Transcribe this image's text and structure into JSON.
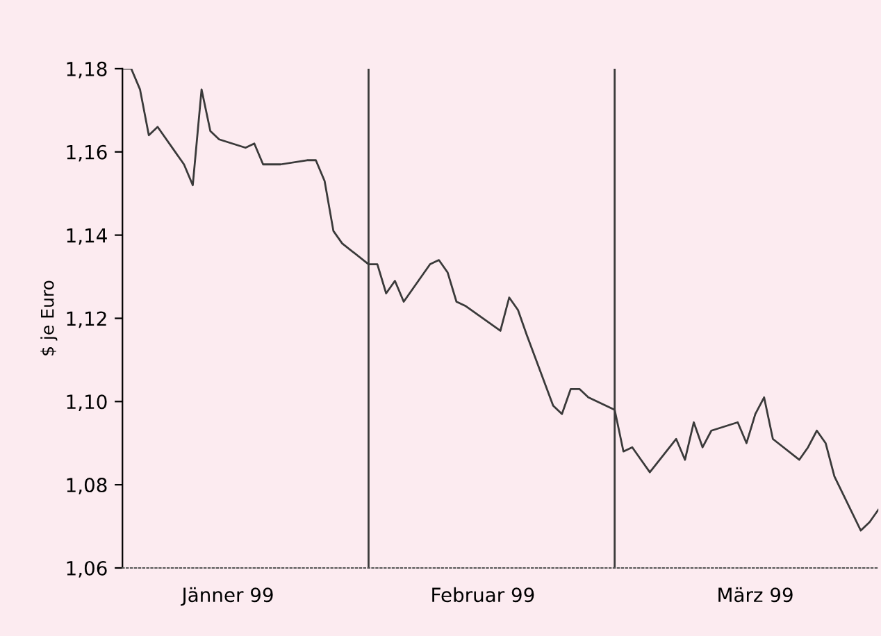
{
  "chart_data": {
    "type": "line",
    "ylabel": "$ je Euro",
    "x": [
      "1999-01-04",
      "1999-01-05",
      "1999-01-06",
      "1999-01-07",
      "1999-01-08",
      "1999-01-11",
      "1999-01-12",
      "1999-01-13",
      "1999-01-14",
      "1999-01-15",
      "1999-01-18",
      "1999-01-19",
      "1999-01-20",
      "1999-01-21",
      "1999-01-22",
      "1999-01-25",
      "1999-01-26",
      "1999-01-27",
      "1999-01-28",
      "1999-01-29",
      "1999-02-01",
      "1999-02-02",
      "1999-02-03",
      "1999-02-04",
      "1999-02-05",
      "1999-02-08",
      "1999-02-09",
      "1999-02-10",
      "1999-02-11",
      "1999-02-12",
      "1999-02-16",
      "1999-02-17",
      "1999-02-18",
      "1999-02-19",
      "1999-02-22",
      "1999-02-23",
      "1999-02-24",
      "1999-02-25",
      "1999-02-26",
      "1999-03-01",
      "1999-03-02",
      "1999-03-03",
      "1999-03-04",
      "1999-03-05",
      "1999-03-08",
      "1999-03-09",
      "1999-03-10",
      "1999-03-11",
      "1999-03-12",
      "1999-03-15",
      "1999-03-16",
      "1999-03-17",
      "1999-03-18",
      "1999-03-19",
      "1999-03-22",
      "1999-03-23",
      "1999-03-24",
      "1999-03-25",
      "1999-03-26",
      "1999-03-29",
      "1999-03-30",
      "1999-03-31"
    ],
    "series": [
      {
        "color": "#3a3a3a",
        "values": [
          1.18,
          1.18,
          1.175,
          1.164,
          1.166,
          1.157,
          1.152,
          1.175,
          1.165,
          1.163,
          1.161,
          1.162,
          1.157,
          1.157,
          1.157,
          1.158,
          1.158,
          1.153,
          1.141,
          1.138,
          1.133,
          1.133,
          1.126,
          1.129,
          1.124,
          1.133,
          1.134,
          1.131,
          1.124,
          1.123,
          1.117,
          1.125,
          1.122,
          1.116,
          1.099,
          1.097,
          1.103,
          1.103,
          1.101,
          1.098,
          1.088,
          1.089,
          1.086,
          1.083,
          1.091,
          1.086,
          1.095,
          1.089,
          1.093,
          1.095,
          1.09,
          1.097,
          1.101,
          1.091,
          1.086,
          1.089,
          1.093,
          1.09,
          1.082,
          1.069,
          1.071,
          1.074
        ]
      }
    ],
    "xlim": [
      "1999-01-04",
      "1999-03-31"
    ],
    "xticks": [
      {
        "value": "1999-01-16",
        "label": "Jänner 99"
      },
      {
        "value": "1999-02-14",
        "label": "Februar 99"
      },
      {
        "value": "1999-03-17",
        "label": "März 99"
      }
    ],
    "ylim": [
      1.06,
      1.18
    ],
    "yticks": [
      {
        "value": 1.06,
        "label": "1,06"
      },
      {
        "value": 1.08,
        "label": "1,08"
      },
      {
        "value": 1.1,
        "label": "1,10"
      },
      {
        "value": 1.12,
        "label": "1,12"
      },
      {
        "value": 1.14,
        "label": "1,14"
      },
      {
        "value": 1.16,
        "label": "1,16"
      },
      {
        "value": 1.18,
        "label": "1,18"
      }
    ],
    "ref_lines": [
      {
        "axis": "x",
        "value": "1999-02-01",
        "color": "#3a3a3a"
      },
      {
        "axis": "x",
        "value": "1999-03-01",
        "color": "#3a3a3a"
      }
    ],
    "grid": false,
    "legend": false,
    "marker": "none",
    "line_style": "solid"
  }
}
